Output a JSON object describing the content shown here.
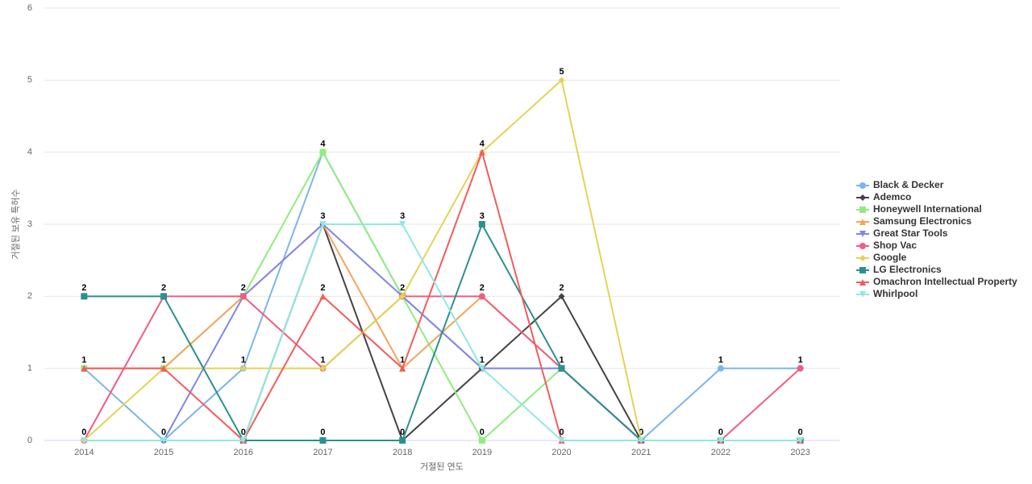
{
  "chart_data": {
    "type": "line",
    "x_label": "거절된 연도",
    "y_label": "거절된 보유 특허수",
    "categories": [
      "2014",
      "2015",
      "2016",
      "2017",
      "2018",
      "2019",
      "2020",
      "2021",
      "2022",
      "2023"
    ],
    "ylim": [
      0,
      6
    ],
    "yticks": [
      0,
      1,
      2,
      3,
      4,
      5,
      6
    ],
    "grid": true,
    "legend": "right",
    "series": [
      {
        "name": "Black & Decker",
        "color": "#7cb5ec",
        "values": [
          1,
          0,
          1,
          4,
          2,
          1,
          1,
          0,
          1,
          1
        ]
      },
      {
        "name": "Ademco",
        "color": "#434348",
        "values": [
          0,
          0,
          0,
          3,
          0,
          1,
          2,
          0,
          0,
          0
        ]
      },
      {
        "name": "Honeywell International",
        "color": "#90ed7d",
        "values": [
          1,
          1,
          2,
          4,
          2,
          0,
          1,
          0,
          0,
          0
        ]
      },
      {
        "name": "Samsung Electronics",
        "color": "#f7a35c",
        "values": [
          1,
          1,
          2,
          3,
          1,
          2,
          1,
          0,
          0,
          0
        ]
      },
      {
        "name": "Great Star Tools",
        "color": "#8085e9",
        "values": [
          0,
          0,
          2,
          3,
          2,
          1,
          1,
          0,
          0,
          0
        ]
      },
      {
        "name": "Shop Vac",
        "color": "#f15c80",
        "values": [
          0,
          2,
          2,
          1,
          2,
          2,
          1,
          0,
          0,
          1
        ]
      },
      {
        "name": "Google",
        "color": "#e4d354",
        "values": [
          0,
          1,
          1,
          1,
          2,
          4,
          5,
          0,
          0,
          0
        ]
      },
      {
        "name": "LG Electronics",
        "color": "#2b908f",
        "values": [
          2,
          2,
          0,
          0,
          0,
          3,
          1,
          0,
          0,
          0
        ]
      },
      {
        "name": "Omachron Intellectual Property",
        "color": "#f45b5b",
        "values": [
          1,
          1,
          0,
          2,
          1,
          4,
          0,
          0,
          0,
          0
        ]
      },
      {
        "name": "Whirlpool",
        "color": "#91e8e1",
        "values": [
          0,
          0,
          0,
          3,
          3,
          1,
          0,
          0,
          0,
          0
        ]
      }
    ]
  }
}
